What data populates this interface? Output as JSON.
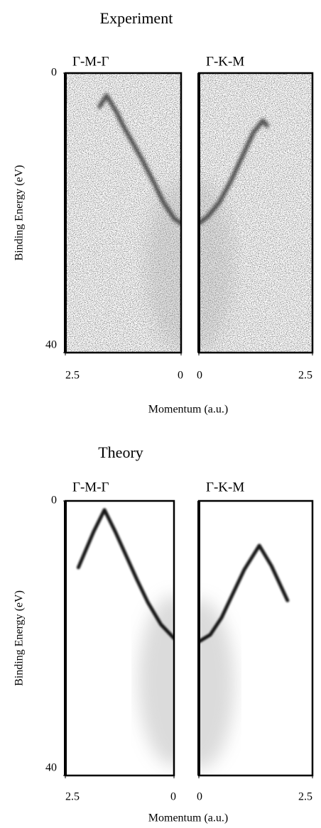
{
  "chart_data": [
    {
      "type": "band",
      "title": "Experiment",
      "ylabel": "Binding Energy (eV)",
      "xlabel": "Momentum (a.u.)",
      "ylim": [
        0,
        40
      ],
      "yticks": [
        0,
        40
      ],
      "noise": true,
      "panels": [
        {
          "label": "Γ-M-Γ",
          "xlim": [
            2.5,
            0
          ],
          "xticks": [
            2.5,
            0
          ],
          "x": [
            1.76,
            1.61,
            1.4,
            1.23,
            1.0,
            0.84,
            0.6,
            0.38,
            0.15,
            0
          ],
          "y": [
            4.8,
            3.2,
            5.5,
            7.8,
            10.5,
            12.4,
            15.5,
            18.5,
            20.8,
            21.5
          ]
        },
        {
          "label": "Γ-K-M",
          "xlim": [
            0,
            2.5
          ],
          "xticks": [
            0,
            2.5
          ],
          "x": [
            0,
            0.2,
            0.45,
            0.7,
            0.95,
            1.2,
            1.41,
            1.5
          ],
          "y": [
            21.5,
            20.5,
            18.5,
            15.5,
            12,
            8.5,
            6.8,
            7.5
          ]
        }
      ]
    },
    {
      "type": "band",
      "title": "Theory",
      "ylabel": "Binding Energy (eV)",
      "xlabel": "Momentum (a.u.)",
      "ylim": [
        0,
        40
      ],
      "yticks": [
        0,
        40
      ],
      "noise": false,
      "panels": [
        {
          "label": "Γ-M-Γ",
          "xlim": [
            2.5,
            0
          ],
          "xticks": [
            2.5,
            0
          ],
          "x": [
            2.2,
            1.85,
            1.6,
            1.35,
            1.1,
            0.85,
            0.6,
            0.3,
            0
          ],
          "y": [
            9.7,
            4.5,
            1.3,
            4.5,
            8,
            11.5,
            14.8,
            18,
            20
          ]
        },
        {
          "label": "Γ-K-M",
          "xlim": [
            0,
            2.5
          ],
          "xticks": [
            0,
            2.5
          ],
          "x": [
            0,
            0.25,
            0.5,
            0.75,
            1.0,
            1.33,
            1.6,
            1.95
          ],
          "y": [
            20.5,
            19.5,
            17,
            13.5,
            10,
            6.5,
            9.5,
            14.5
          ]
        }
      ]
    }
  ]
}
